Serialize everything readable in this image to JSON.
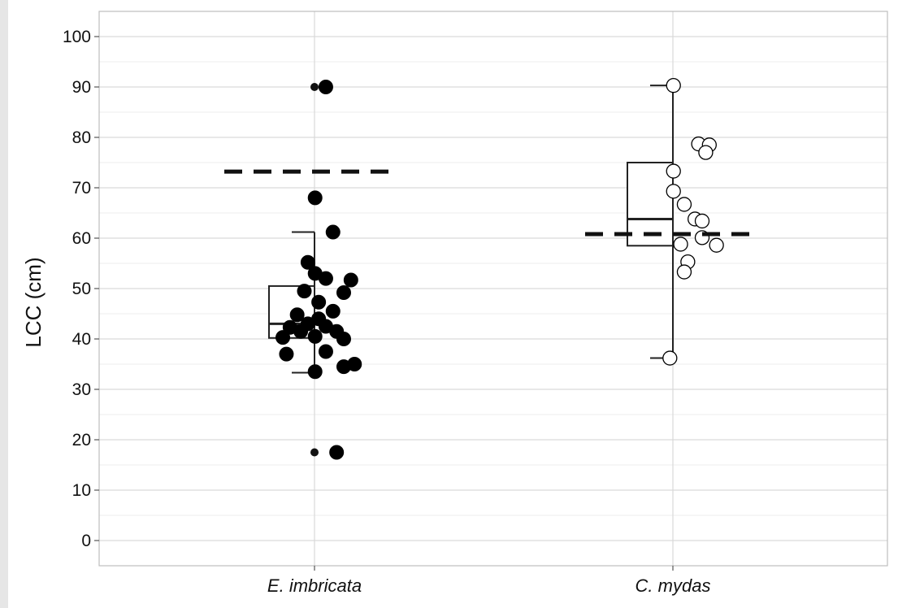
{
  "chart_data": {
    "type": "box",
    "ylabel": "LCC (cm)",
    "xlabel": "",
    "ylim": [
      -5,
      105
    ],
    "yticks": [
      0,
      10,
      20,
      30,
      40,
      50,
      60,
      70,
      80,
      90,
      100
    ],
    "grid": true,
    "categories": [
      "E. imbricata",
      "C. mydas"
    ],
    "series": [
      {
        "category": "E. imbricata",
        "point_style": "filled",
        "box": {
          "q1": 40.2,
          "median": 43.0,
          "q3": 50.5,
          "whisker_low": 33.3,
          "whisker_high": 61.2
        },
        "outliers": [
          90,
          68,
          17.5
        ],
        "reference_line": 73.2,
        "points": [
          [
            0.45,
            90
          ],
          [
            0.42,
            68
          ],
          [
            0.47,
            61.2
          ],
          [
            0.4,
            55.2
          ],
          [
            0.42,
            53
          ],
          [
            0.45,
            52
          ],
          [
            0.52,
            51.7
          ],
          [
            0.39,
            49.5
          ],
          [
            0.5,
            49.2
          ],
          [
            0.43,
            47.3
          ],
          [
            0.47,
            45.5
          ],
          [
            0.37,
            44.8
          ],
          [
            0.43,
            44
          ],
          [
            0.4,
            43
          ],
          [
            0.35,
            42.3
          ],
          [
            0.45,
            42.5
          ],
          [
            0.38,
            41.5
          ],
          [
            0.48,
            41.5
          ],
          [
            0.33,
            40.3
          ],
          [
            0.42,
            40.5
          ],
          [
            0.5,
            40
          ],
          [
            0.34,
            37
          ],
          [
            0.45,
            37.5
          ],
          [
            0.42,
            33.5
          ],
          [
            0.5,
            34.5
          ],
          [
            0.53,
            35
          ],
          [
            0.48,
            17.5
          ]
        ]
      },
      {
        "category": "C. mydas",
        "point_style": "open",
        "box": {
          "q1": 58.5,
          "median": 63.8,
          "q3": 75.0,
          "whisker_low": 36.2,
          "whisker_high": 90.3
        },
        "outliers": [],
        "reference_line": 60.8,
        "points": [
          [
            0.42,
            90.3
          ],
          [
            0.49,
            78.7
          ],
          [
            0.52,
            78.5
          ],
          [
            0.51,
            77
          ],
          [
            0.42,
            73.3
          ],
          [
            0.42,
            69.3
          ],
          [
            0.45,
            66.7
          ],
          [
            0.48,
            63.8
          ],
          [
            0.5,
            63.4
          ],
          [
            0.5,
            60.1
          ],
          [
            0.44,
            58.8
          ],
          [
            0.54,
            58.6
          ],
          [
            0.46,
            55.3
          ],
          [
            0.45,
            53.3
          ],
          [
            0.41,
            36.2
          ]
        ]
      }
    ]
  }
}
